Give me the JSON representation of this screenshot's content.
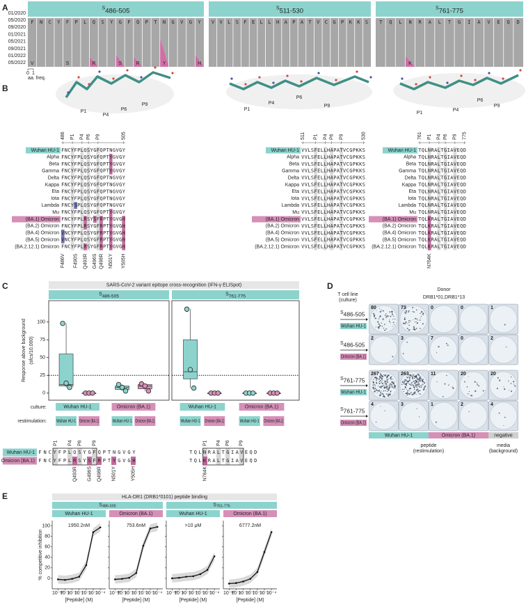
{
  "header_color": "#8dd3cd",
  "strains": [
    {
      "name": "Wuhan HU-1",
      "color": "#8dd3cd"
    },
    {
      "name": "Omicron (BA.1)",
      "color": "#d690b8"
    }
  ],
  "panel_A": {
    "label": "A",
    "dates": [
      "01/2020",
      "05/2020",
      "09/2020",
      "01/2021",
      "05/2021",
      "09/2021",
      "01/2022",
      "05/2022"
    ],
    "freq_ticks": [
      0,
      1
    ],
    "freq_label": "aa. freq."
  },
  "panel_B": {
    "label": "B",
    "pockets": [
      "P1",
      "P4",
      "P6",
      "P9"
    ],
    "variants": [
      "Wuhan HU-1",
      "Alpha",
      "Beta",
      "Gamma",
      "Delta",
      "Kappa",
      "Eta",
      "Iota",
      "Lambda",
      "Mu",
      "(BA.1) Omicron",
      "(BA.2) Omicron",
      "(BA.4) Omicron",
      "(BA.5) Omicron",
      "(BA.2.12.1) Omicron"
    ]
  },
  "epitopes": [
    {
      "header": {
        "main": "S",
        "sub": "486-505"
      },
      "start": 486,
      "end": 505,
      "sequences": [
        "FNCYFPLQSYGFQPTNGVGY",
        "FNCYFPLQSYGFQPTYGVGY",
        "FNCYFPLQSYGFQPTYGVGY",
        "FNCYFPLQSYGFQPTYGVGY",
        "FNCYFPLQSYGFQPTNGVGY",
        "FNCYFPLQSYGFQPTNGVGY",
        "FNCYFPLQSYGFQPTNGVGY",
        "FNCYFPLQSYGFQPTNGVGY",
        "FNCYSPLQSYGFQPTNGVGY",
        "FNCYFPLQSYGFQPTYGVGY",
        "FNCYFPLRSYSFRPTYGVGH",
        "FNCYFPLRSYGFRPTYGVGH",
        "VNCYFPLQSYGFRPTYGVGH",
        "VNCYFPLQSYGFRPTYGVGH",
        "FNCYFPLRSYGFRPTYGVGH"
      ],
      "mutations": [
        {
          "label": "F486V",
          "color": "#5b5ea6"
        },
        {
          "label": "F490S",
          "color": "#5b5ea6"
        },
        {
          "label": "Q493R",
          "color": "#b8508c"
        },
        {
          "label": "G496S",
          "color": "#b8508c"
        },
        {
          "label": "Q498R",
          "color": "#b8508c"
        },
        {
          "label": "N501Y",
          "color": "#b8508c"
        },
        {
          "label": "Y505H",
          "color": "#b8508c"
        }
      ],
      "freq_markers": [
        "V",
        "S",
        "R",
        "S",
        "R",
        "Y",
        "H"
      ]
    },
    {
      "header": {
        "main": "S",
        "sub": "511-530"
      },
      "start": 511,
      "end": 530,
      "sequences": [
        "VVLSFELLHAPATVCGPKKS",
        "VVLSFELLHAPATVCGPKKS",
        "VVLSFELLHAPATVCGPKKS",
        "VVLSFELLHAPATVCGPKKS",
        "VVLSFELLHAPATVCGPKKS",
        "VVLSFELLHAPATVCGPKKS",
        "VVLSFELLHAPATVCGPKKS",
        "VVLSFELLHAPATVCGPKKS",
        "VVLSFELLHAPATVCGPKKS",
        "VVLSFELLHAPATVCGPKKS",
        "VVLSFELLHAPATVCGPKKS",
        "VVLSFELLHAPATVCGPKKS",
        "VVLSFELLHAPATVCGPKKS",
        "VVLSFELLHAPATVCGPKKS",
        "VVLSFELLHAPATVCGPKKS"
      ],
      "mutations": [],
      "freq_markers": []
    },
    {
      "header": {
        "main": "S",
        "sub": "761-775"
      },
      "start": 761,
      "end": 775,
      "sequences": [
        "TQLNRALTGIAVEQD",
        "TQLNRALTGIAVEQD",
        "TQLNRALTGIAVEQD",
        "TQLNRALTGIAVEQD",
        "TQLNRALTGIAVEQD",
        "TQLNRALTGIAVEQD",
        "TQLNRALTGIAVEQD",
        "TQLNRALTGIAVEQD",
        "TQLNRALTGIAVEQD",
        "TQLNRALTGIAVEQD",
        "TQLKRALTGIAVEQD",
        "TQLKRALTGIAVEQD",
        "TQLKRALTGIAVEQD",
        "TQLKRALTGIAVEQD",
        "TQLKRALTGIAVEQD"
      ],
      "mutations": [
        {
          "label": "N764K",
          "color": "#b8508c"
        }
      ],
      "freq_markers": [
        "K"
      ]
    }
  ],
  "panel_C": {
    "label": "C",
    "title": "SARS-CoV-2 variant epitope cross-recognition (IFN-γ ELISpot)",
    "ylabel": [
      "Response above background",
      "(sfcs/10,000)"
    ],
    "ylim": [
      -10,
      130
    ],
    "yticks": [
      0,
      25,
      50,
      75,
      100
    ],
    "threshold": 25,
    "culture_label": "culture:",
    "restim_label": "restimulation:",
    "panels": [
      {
        "cultures": [
          {
            "restims": [
              {
                "points": [
                  98,
                  14,
                  8
                ],
                "box": {
                  "min": 8,
                  "q1": 10,
                  "median": 12,
                  "q3": 55,
                  "max": 98
                }
              },
              {
                "points": [
                  0,
                  0,
                  0
                ],
                "box": {
                  "min": 0,
                  "q1": 0,
                  "median": 0,
                  "q3": 0,
                  "max": 0
                }
              }
            ]
          },
          {
            "restims": [
              {
                "points": [
                  12,
                  8,
                  3
                ],
                "box": {
                  "min": 3,
                  "q1": 5,
                  "median": 8,
                  "q3": 10,
                  "max": 12
                }
              },
              {
                "points": [
                  13,
                  10,
                  3
                ],
                "box": {
                  "min": 3,
                  "q1": 6,
                  "median": 10,
                  "q3": 12,
                  "max": 13
                }
              }
            ]
          }
        ]
      },
      {
        "cultures": [
          {
            "restims": [
              {
                "points": [
                  118,
                  33,
                  7
                ],
                "box": {
                  "min": 7,
                  "q1": 20,
                  "median": 30,
                  "q3": 75,
                  "max": 118
                }
              },
              {
                "points": [
                  0,
                  0,
                  0
                ],
                "box": {
                  "min": 0,
                  "q1": 0,
                  "median": 0,
                  "q3": 0,
                  "max": 0
                }
              }
            ]
          },
          {
            "restims": [
              {
                "points": [
                  0,
                  0,
                  0
                ],
                "box": {
                  "min": 0,
                  "q1": 0,
                  "median": 0,
                  "q3": 0,
                  "max": 0
                }
              },
              {
                "points": [
                  0,
                  0,
                  0
                ],
                "box": {
                  "min": 0,
                  "q1": 0,
                  "median": 0,
                  "q3": 0,
                  "max": 0
                }
              }
            ]
          }
        ]
      }
    ]
  },
  "panel_D": {
    "label": "D",
    "culture_title": "T cell line",
    "culture_sub": "(culture)",
    "donor": "Donor",
    "hla": "DRB1*01,DRB1*13",
    "rows": [
      {
        "counts": [
          80,
          73,
          0,
          0,
          1
        ]
      },
      {
        "counts": [
          2,
          3,
          7,
          0,
          2
        ]
      },
      {
        "counts": [
          267,
          263,
          11,
          20,
          20
        ]
      },
      {
        "counts": [
          4,
          3,
          1,
          2,
          4
        ]
      }
    ],
    "negative": "negative",
    "peptide": "peptide",
    "restimulation": "(restimulation)",
    "media": "media",
    "background": "(background)"
  },
  "panel_E": {
    "label": "E",
    "title": "HLA-DR1 (DRB1*0101) peptide binding",
    "ylabel": "% competitive inhibition",
    "xlabel": "[Peptide] (M)",
    "ylim": [
      -20,
      110
    ],
    "yticks": [
      0,
      20,
      40,
      60,
      80,
      100
    ],
    "log_x": true,
    "xlim": [
      3e-11,
      0.0003
    ],
    "xticks": [
      {
        "value": 1e-10,
        "label": "10⁻¹⁰"
      },
      {
        "value": 1e-09,
        "label": "10⁻⁹"
      },
      {
        "value": 1e-08,
        "label": "10⁻⁸"
      },
      {
        "value": 1e-07,
        "label": "10⁻⁷"
      },
      {
        "value": 1e-06,
        "label": "10⁻⁶"
      },
      {
        "value": 1e-05,
        "label": "10⁻⁵"
      },
      {
        "value": 0.0001,
        "label": "10⁻⁴"
      }
    ],
    "x": [
      1e-10,
      1e-09,
      1e-08,
      1e-07,
      1e-06,
      1e-05,
      0.0001
    ],
    "curves": [
      {
        "ic50": "1950.2nM",
        "values": [
          -2,
          -3,
          -1,
          3,
          25,
          88,
          97
        ]
      },
      {
        "ic50": "753.6nM",
        "values": [
          -2,
          -1,
          1,
          10,
          62,
          95,
          98
        ]
      },
      {
        "ic50": ">10 μM",
        "values": [
          0,
          1,
          3,
          4,
          8,
          16,
          42
        ]
      },
      {
        "ic50": "6777.2nM",
        "values": [
          -10,
          -9,
          -6,
          -1,
          12,
          50,
          88
        ]
      }
    ]
  }
}
